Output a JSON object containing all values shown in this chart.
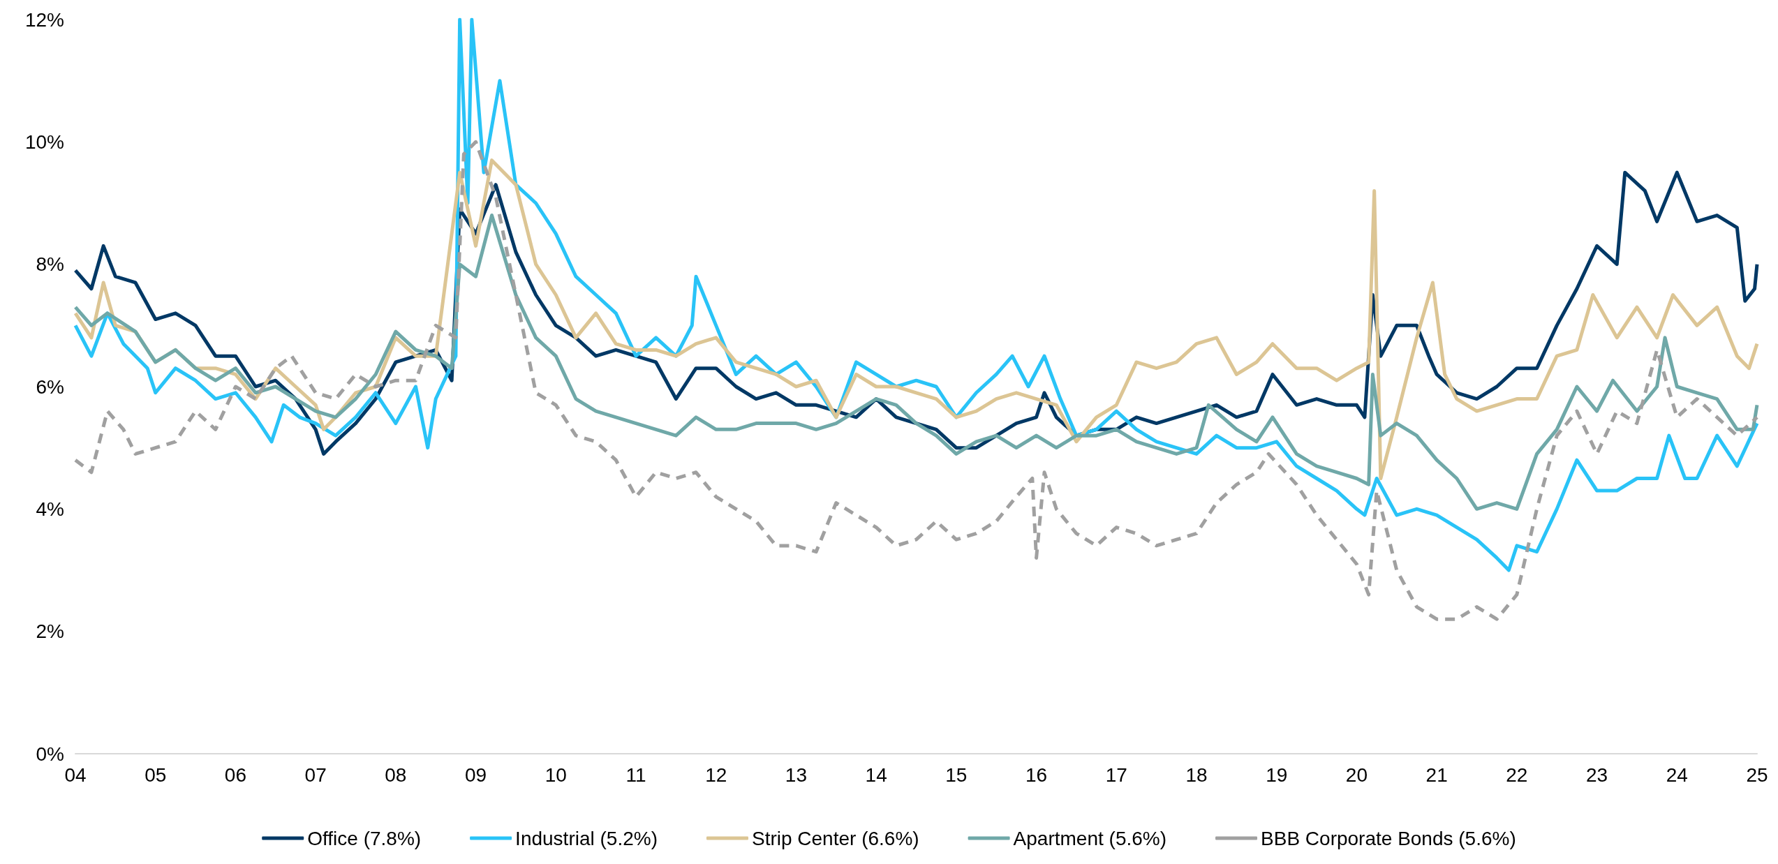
{
  "chart_data": {
    "type": "line",
    "xlim": [
      2004,
      2025
    ],
    "xticks": [
      {
        "value": 2004,
        "label": "04"
      },
      {
        "value": 2005,
        "label": "05"
      },
      {
        "value": 2006,
        "label": "06"
      },
      {
        "value": 2007,
        "label": "07"
      },
      {
        "value": 2008,
        "label": "08"
      },
      {
        "value": 2009,
        "label": "09"
      },
      {
        "value": 2010,
        "label": "10"
      },
      {
        "value": 2011,
        "label": "11"
      },
      {
        "value": 2012,
        "label": "12"
      },
      {
        "value": 2013,
        "label": "13"
      },
      {
        "value": 2014,
        "label": "14"
      },
      {
        "value": 2015,
        "label": "15"
      },
      {
        "value": 2016,
        "label": "16"
      },
      {
        "value": 2017,
        "label": "17"
      },
      {
        "value": 2018,
        "label": "18"
      },
      {
        "value": 2019,
        "label": "19"
      },
      {
        "value": 2020,
        "label": "20"
      },
      {
        "value": 2021,
        "label": "21"
      },
      {
        "value": 2022,
        "label": "22"
      },
      {
        "value": 2023,
        "label": "23"
      },
      {
        "value": 2024,
        "label": "24"
      },
      {
        "value": 2025,
        "label": "25"
      }
    ],
    "ylim": [
      0,
      12
    ],
    "yticks": [
      {
        "value": 0,
        "label": "0%"
      },
      {
        "value": 2,
        "label": "2%"
      },
      {
        "value": 4,
        "label": "4%"
      },
      {
        "value": 6,
        "label": "6%"
      },
      {
        "value": 8,
        "label": "8%"
      },
      {
        "value": 10,
        "label": "10%"
      },
      {
        "value": 12,
        "label": "12%"
      }
    ],
    "grid": false,
    "legend": "bottom",
    "marker": "none",
    "line_style": "solid",
    "series": [
      {
        "name": "Office (7.8%)",
        "color": "#003865",
        "x": [
          2004,
          2004.2,
          2004.35,
          2004.5,
          2004.75,
          2005,
          2005.25,
          2005.5,
          2005.75,
          2006,
          2006.25,
          2006.5,
          2006.75,
          2007,
          2007.1,
          2007.25,
          2007.5,
          2007.75,
          2008,
          2008.25,
          2008.5,
          2008.7,
          2008.8,
          2009,
          2009.25,
          2009.5,
          2009.75,
          2010,
          2010.25,
          2010.5,
          2010.75,
          2011,
          2011.25,
          2011.5,
          2011.75,
          2012,
          2012.25,
          2012.5,
          2012.75,
          2013,
          2013.25,
          2013.5,
          2013.75,
          2014,
          2014.25,
          2014.5,
          2014.75,
          2015,
          2015.25,
          2015.5,
          2015.75,
          2016,
          2016.1,
          2016.25,
          2016.5,
          2016.75,
          2017,
          2017.25,
          2017.5,
          2017.75,
          2018,
          2018.25,
          2018.5,
          2018.75,
          2018.95,
          2019.25,
          2019.5,
          2019.75,
          2020,
          2020.1,
          2020.2,
          2020.3,
          2020.5,
          2020.75,
          2020.9,
          2021,
          2021.25,
          2021.5,
          2021.75,
          2022,
          2022.25,
          2022.5,
          2022.75,
          2023,
          2023.25,
          2023.35,
          2023.6,
          2023.75,
          2024,
          2024.25,
          2024.5,
          2024.75,
          2024.85,
          2024.97,
          2025
        ],
        "values": [
          7.9,
          7.6,
          8.3,
          7.8,
          7.7,
          7.1,
          7.2,
          7.0,
          6.5,
          6.5,
          6.0,
          6.1,
          5.8,
          5.3,
          4.9,
          5.1,
          5.4,
          5.8,
          6.4,
          6.5,
          6.6,
          6.1,
          8.9,
          8.5,
          9.3,
          8.2,
          7.5,
          7.0,
          6.8,
          6.5,
          6.6,
          6.5,
          6.4,
          5.8,
          6.3,
          6.3,
          6.0,
          5.8,
          5.9,
          5.7,
          5.7,
          5.6,
          5.5,
          5.8,
          5.5,
          5.4,
          5.3,
          5.0,
          5.0,
          5.2,
          5.4,
          5.5,
          5.9,
          5.5,
          5.2,
          5.3,
          5.3,
          5.5,
          5.4,
          5.5,
          5.6,
          5.7,
          5.5,
          5.6,
          6.2,
          5.7,
          5.8,
          5.7,
          5.7,
          5.5,
          7.5,
          6.5,
          7.0,
          7.0,
          6.5,
          6.2,
          5.9,
          5.8,
          6.0,
          6.3,
          6.3,
          7.0,
          7.6,
          8.3,
          8.0,
          9.5,
          9.2,
          8.7,
          9.5,
          8.7,
          8.8,
          8.6,
          7.4,
          7.6,
          8.0
        ]
      },
      {
        "name": "Industrial (5.2%)",
        "color": "#29c3f7",
        "x": [
          2004,
          2004.2,
          2004.4,
          2004.6,
          2004.9,
          2005,
          2005.25,
          2005.5,
          2005.75,
          2006,
          2006.25,
          2006.45,
          2006.6,
          2006.8,
          2007,
          2007.25,
          2007.5,
          2007.75,
          2008,
          2008.25,
          2008.4,
          2008.5,
          2008.75,
          2008.8,
          2008.9,
          2008.95,
          2009.1,
          2009.3,
          2009.5,
          2009.75,
          2010,
          2010.25,
          2010.5,
          2010.75,
          2011,
          2011.25,
          2011.5,
          2011.7,
          2011.75,
          2012,
          2012.25,
          2012.5,
          2012.75,
          2013,
          2013.25,
          2013.5,
          2013.75,
          2014,
          2014.25,
          2014.5,
          2014.75,
          2015,
          2015.25,
          2015.5,
          2015.7,
          2015.9,
          2016.1,
          2016.3,
          2016.5,
          2016.75,
          2017,
          2017.25,
          2017.5,
          2017.75,
          2018,
          2018.25,
          2018.5,
          2018.75,
          2019,
          2019.25,
          2019.5,
          2019.75,
          2020,
          2020.1,
          2020.25,
          2020.5,
          2020.75,
          2021,
          2021.25,
          2021.5,
          2021.75,
          2021.9,
          2022,
          2022.25,
          2022.5,
          2022.75,
          2023,
          2023.25,
          2023.5,
          2023.75,
          2023.9,
          2024.1,
          2024.25,
          2024.5,
          2024.75,
          2025
        ],
        "values": [
          7.0,
          6.5,
          7.2,
          6.7,
          6.3,
          5.9,
          6.3,
          6.1,
          5.8,
          5.9,
          5.5,
          5.1,
          5.7,
          5.5,
          5.4,
          5.2,
          5.5,
          5.9,
          5.4,
          6.0,
          5.0,
          5.8,
          6.5,
          12.0,
          9.0,
          12.0,
          9.5,
          11.0,
          9.3,
          9.0,
          8.5,
          7.8,
          7.5,
          7.2,
          6.5,
          6.8,
          6.5,
          7.0,
          7.8,
          7.0,
          6.2,
          6.5,
          6.2,
          6.4,
          6.0,
          5.5,
          6.4,
          6.2,
          6.0,
          6.1,
          6.0,
          5.5,
          5.9,
          6.2,
          6.5,
          6.0,
          6.5,
          5.8,
          5.2,
          5.3,
          5.6,
          5.3,
          5.1,
          5.0,
          4.9,
          5.2,
          5.0,
          5.0,
          5.1,
          4.7,
          4.5,
          4.3,
          4.0,
          3.9,
          4.5,
          3.9,
          4.0,
          3.9,
          3.7,
          3.5,
          3.2,
          3.0,
          3.4,
          3.3,
          4.0,
          4.8,
          4.3,
          4.3,
          4.5,
          4.5,
          5.2,
          4.5,
          4.5,
          5.2,
          4.7,
          5.4
        ]
      },
      {
        "name": "Strip Center (6.6%)",
        "color": "#dcc594",
        "x": [
          2004,
          2004.2,
          2004.35,
          2004.5,
          2004.75,
          2005,
          2005.25,
          2005.5,
          2005.75,
          2006,
          2006.25,
          2006.5,
          2006.75,
          2007,
          2007.1,
          2007.25,
          2007.5,
          2007.75,
          2008,
          2008.25,
          2008.5,
          2008.8,
          2009,
          2009.2,
          2009.5,
          2009.75,
          2010,
          2010.25,
          2010.5,
          2010.75,
          2011,
          2011.25,
          2011.5,
          2011.75,
          2012,
          2012.25,
          2012.5,
          2012.75,
          2013,
          2013.25,
          2013.5,
          2013.75,
          2014,
          2014.25,
          2014.5,
          2014.75,
          2015,
          2015.25,
          2015.5,
          2015.75,
          2016,
          2016.25,
          2016.5,
          2016.75,
          2017,
          2017.25,
          2017.5,
          2017.75,
          2018,
          2018.25,
          2018.5,
          2018.75,
          2018.95,
          2019.25,
          2019.5,
          2019.75,
          2020,
          2020.15,
          2020.22,
          2020.3,
          2020.5,
          2020.75,
          2020.95,
          2021.1,
          2021.25,
          2021.5,
          2021.75,
          2022,
          2022.25,
          2022.5,
          2022.75,
          2022.95,
          2023.25,
          2023.5,
          2023.75,
          2023.95,
          2024.25,
          2024.5,
          2024.75,
          2024.9,
          2025
        ],
        "values": [
          7.2,
          6.8,
          7.7,
          7.0,
          6.9,
          6.4,
          6.6,
          6.3,
          6.3,
          6.2,
          5.8,
          6.3,
          6.0,
          5.7,
          5.3,
          5.5,
          5.9,
          6.0,
          6.8,
          6.5,
          6.5,
          9.5,
          8.3,
          9.7,
          9.3,
          8.0,
          7.5,
          6.8,
          7.2,
          6.7,
          6.6,
          6.6,
          6.5,
          6.7,
          6.8,
          6.4,
          6.3,
          6.2,
          6.0,
          6.1,
          5.5,
          6.2,
          6.0,
          6.0,
          5.9,
          5.8,
          5.5,
          5.6,
          5.8,
          5.9,
          5.8,
          5.7,
          5.1,
          5.5,
          5.7,
          6.4,
          6.3,
          6.4,
          6.7,
          6.8,
          6.2,
          6.4,
          6.7,
          6.3,
          6.3,
          6.1,
          6.3,
          6.4,
          9.2,
          4.5,
          5.5,
          6.8,
          7.7,
          6.2,
          5.8,
          5.6,
          5.7,
          5.8,
          5.8,
          6.5,
          6.6,
          7.5,
          6.8,
          7.3,
          6.8,
          7.5,
          7.0,
          7.3,
          6.5,
          6.3,
          6.7
        ]
      },
      {
        "name": "Apartment (5.6%)",
        "color": "#6fa8a8",
        "x": [
          2004,
          2004.2,
          2004.4,
          2004.75,
          2005,
          2005.25,
          2005.5,
          2005.75,
          2006,
          2006.25,
          2006.5,
          2006.75,
          2007,
          2007.25,
          2007.5,
          2007.75,
          2008,
          2008.25,
          2008.5,
          2008.7,
          2008.8,
          2009,
          2009.2,
          2009.5,
          2009.75,
          2010,
          2010.25,
          2010.5,
          2010.75,
          2011,
          2011.25,
          2011.5,
          2011.75,
          2012,
          2012.25,
          2012.5,
          2012.75,
          2013,
          2013.25,
          2013.5,
          2013.75,
          2014,
          2014.25,
          2014.5,
          2014.75,
          2015,
          2015.25,
          2015.5,
          2015.75,
          2016,
          2016.25,
          2016.5,
          2016.75,
          2017,
          2017.25,
          2017.5,
          2017.75,
          2018,
          2018.15,
          2018.5,
          2018.75,
          2018.95,
          2019.25,
          2019.5,
          2019.75,
          2020,
          2020.15,
          2020.2,
          2020.3,
          2020.5,
          2020.75,
          2021,
          2021.25,
          2021.5,
          2021.75,
          2022,
          2022.25,
          2022.5,
          2022.75,
          2023,
          2023.2,
          2023.5,
          2023.75,
          2023.85,
          2024,
          2024.25,
          2024.5,
          2024.75,
          2024.95,
          2025
        ],
        "values": [
          7.3,
          7.0,
          7.2,
          6.9,
          6.4,
          6.6,
          6.3,
          6.1,
          6.3,
          5.9,
          6.0,
          5.8,
          5.6,
          5.5,
          5.8,
          6.2,
          6.9,
          6.6,
          6.5,
          6.3,
          8.0,
          7.8,
          8.8,
          7.5,
          6.8,
          6.5,
          5.8,
          5.6,
          5.5,
          5.4,
          5.3,
          5.2,
          5.5,
          5.3,
          5.3,
          5.4,
          5.4,
          5.4,
          5.3,
          5.4,
          5.6,
          5.8,
          5.7,
          5.4,
          5.2,
          4.9,
          5.1,
          5.2,
          5.0,
          5.2,
          5.0,
          5.2,
          5.2,
          5.3,
          5.1,
          5.0,
          4.9,
          5.0,
          5.7,
          5.3,
          5.1,
          5.5,
          4.9,
          4.7,
          4.6,
          4.5,
          4.4,
          6.2,
          5.2,
          5.4,
          5.2,
          4.8,
          4.5,
          4.0,
          4.1,
          4.0,
          4.9,
          5.3,
          6.0,
          5.6,
          6.1,
          5.6,
          6.0,
          6.8,
          6.0,
          5.9,
          5.8,
          5.3,
          5.3,
          5.7
        ]
      },
      {
        "name": "BBB Corporate Bonds (5.6%)",
        "color": "#a0a0a0",
        "line_style": "dashed",
        "x": [
          2004,
          2004.2,
          2004.4,
          2004.6,
          2004.75,
          2005,
          2005.25,
          2005.5,
          2005.75,
          2006,
          2006.25,
          2006.5,
          2006.7,
          2007,
          2007.25,
          2007.5,
          2007.75,
          2008,
          2008.25,
          2008.5,
          2008.75,
          2008.85,
          2009,
          2009.25,
          2009.5,
          2009.75,
          2010,
          2010.25,
          2010.5,
          2010.75,
          2011,
          2011.25,
          2011.5,
          2011.75,
          2012,
          2012.25,
          2012.5,
          2012.75,
          2013,
          2013.25,
          2013.5,
          2013.75,
          2014,
          2014.25,
          2014.5,
          2014.75,
          2015,
          2015.25,
          2015.5,
          2015.75,
          2015.95,
          2016,
          2016.1,
          2016.25,
          2016.5,
          2016.75,
          2017,
          2017.25,
          2017.5,
          2017.75,
          2018,
          2018.25,
          2018.5,
          2018.75,
          2018.9,
          2019.25,
          2019.5,
          2019.75,
          2020,
          2020.15,
          2020.25,
          2020.5,
          2020.75,
          2021,
          2021.25,
          2021.5,
          2021.75,
          2022,
          2022.25,
          2022.5,
          2022.75,
          2023,
          2023.25,
          2023.5,
          2023.75,
          2024,
          2024.25,
          2024.5,
          2024.75,
          2025
        ],
        "values": [
          4.8,
          4.6,
          5.6,
          5.3,
          4.9,
          5.0,
          5.1,
          5.6,
          5.3,
          6.0,
          5.8,
          6.3,
          6.5,
          5.9,
          5.8,
          6.2,
          6.0,
          6.1,
          6.1,
          7.0,
          6.8,
          9.8,
          10.0,
          9.1,
          7.5,
          5.9,
          5.7,
          5.2,
          5.1,
          4.8,
          4.2,
          4.6,
          4.5,
          4.6,
          4.2,
          4.0,
          3.8,
          3.4,
          3.4,
          3.3,
          4.1,
          3.9,
          3.7,
          3.4,
          3.5,
          3.8,
          3.5,
          3.6,
          3.8,
          4.2,
          4.5,
          3.2,
          4.6,
          4.0,
          3.6,
          3.4,
          3.7,
          3.6,
          3.4,
          3.5,
          3.6,
          4.1,
          4.4,
          4.6,
          4.9,
          4.4,
          3.9,
          3.5,
          3.1,
          2.6,
          4.3,
          3.0,
          2.4,
          2.2,
          2.2,
          2.4,
          2.2,
          2.6,
          4.0,
          5.2,
          5.6,
          4.9,
          5.6,
          5.4,
          6.6,
          5.5,
          5.8,
          5.5,
          5.2,
          5.5
        ]
      }
    ]
  }
}
